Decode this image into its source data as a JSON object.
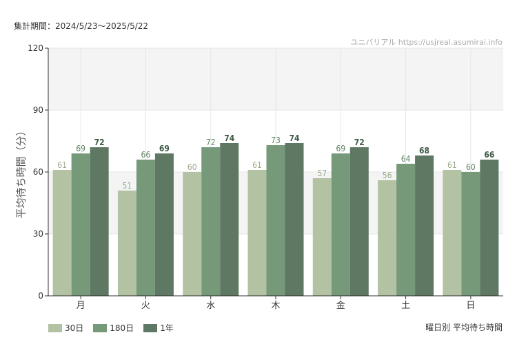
{
  "header": {
    "period": "集計期間：2024/5/23〜2025/5/22",
    "watermark": "ユニバリアル  https://usjreal.asumirai.info"
  },
  "chart_data": {
    "type": "bar",
    "title": "曜日別 平均待ち時間",
    "ylabel": "平均待ち時間（分）",
    "ylim": [
      0,
      120
    ],
    "yticks": [
      0,
      30,
      60,
      90,
      120
    ],
    "grid": true,
    "legend_position": "bottom-left",
    "categories": [
      "月",
      "火",
      "水",
      "木",
      "金",
      "土",
      "日"
    ],
    "series": [
      {
        "name": "30日",
        "color": "#b3c2a3",
        "label_color": "#9aab88",
        "values": [
          61,
          51,
          60,
          61,
          57,
          56,
          61
        ]
      },
      {
        "name": "180日",
        "color": "#76997a",
        "label_color": "#5e8463",
        "values": [
          69,
          66,
          72,
          73,
          69,
          64,
          60
        ]
      },
      {
        "name": "1年",
        "color": "#5e7863",
        "label_color": "#3f5a45",
        "values": [
          72,
          69,
          74,
          74,
          72,
          68,
          66
        ]
      }
    ]
  }
}
